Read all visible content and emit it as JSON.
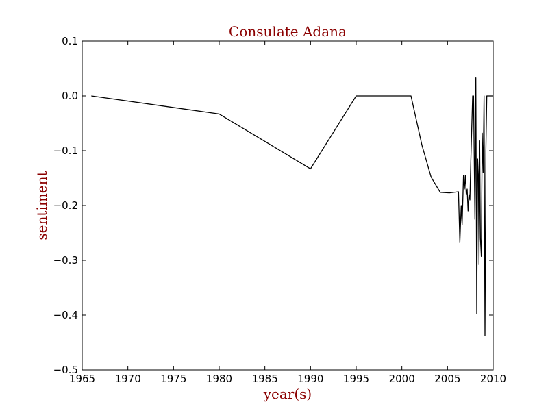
{
  "chart_data": {
    "type": "line",
    "title": "Consulate Adana",
    "xlabel": "year(s)",
    "ylabel": "sentiment",
    "xlim": [
      1965,
      2010
    ],
    "ylim": [
      -0.5,
      0.1
    ],
    "xticks": [
      1965,
      1970,
      1975,
      1980,
      1985,
      1990,
      1995,
      2000,
      2005,
      2010
    ],
    "yticks": [
      0.1,
      0.0,
      -0.1,
      -0.2,
      -0.3,
      -0.4,
      -0.5
    ],
    "xtick_labels": [
      "1965",
      "1970",
      "1975",
      "1980",
      "1985",
      "1990",
      "1995",
      "2000",
      "2005",
      "2010"
    ],
    "ytick_labels": [
      "0.1",
      "0.0",
      "−0.1",
      "−0.2",
      "−0.3",
      "−0.4",
      "−0.5"
    ],
    "grid": false,
    "series": [
      {
        "color": "#000000",
        "x": [
          1966.0,
          1980.0,
          1990.0,
          1995.0,
          2001.0,
          2002.2,
          2003.2,
          2004.2,
          2005.2,
          2006.2,
          2006.35,
          2006.5,
          2006.6,
          2006.75,
          2006.85,
          2006.95,
          2007.05,
          2007.15,
          2007.25,
          2007.35,
          2007.45,
          2007.55,
          2007.65,
          2007.75,
          2007.85,
          2008.0,
          2008.1,
          2008.2,
          2008.3,
          2008.38,
          2008.45,
          2008.52,
          2008.6,
          2008.7,
          2008.8,
          2008.9,
          2009.0,
          2009.1,
          2009.2,
          2009.3,
          2009.4,
          2009.5,
          2009.6,
          2009.7,
          2009.8,
          2009.9,
          2010.0
        ],
        "y": [
          0.0,
          -0.033,
          -0.133,
          0.0,
          0.0,
          -0.09,
          -0.148,
          -0.176,
          -0.177,
          -0.175,
          -0.268,
          -0.2,
          -0.235,
          -0.145,
          -0.17,
          -0.145,
          -0.18,
          -0.17,
          -0.21,
          -0.18,
          -0.19,
          -0.12,
          -0.06,
          0.0,
          0.0,
          -0.225,
          0.033,
          -0.398,
          -0.115,
          -0.145,
          -0.308,
          -0.082,
          -0.26,
          -0.293,
          -0.068,
          -0.14,
          0.0,
          -0.438,
          -0.1,
          0.0,
          0.0,
          -0.0,
          -0.0,
          -0.0,
          -0.0,
          -0.0,
          0.0
        ]
      }
    ]
  }
}
